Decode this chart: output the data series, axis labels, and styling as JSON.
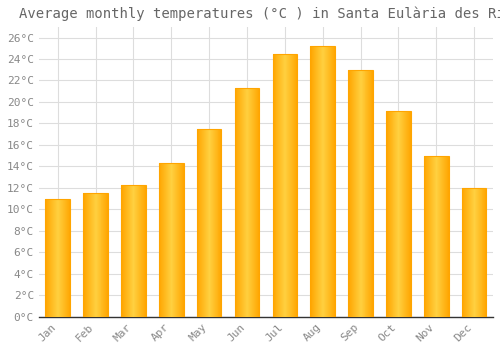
{
  "title": "Average monthly temperatures (°C ) in Santa Eulària des Riu",
  "months": [
    "Jan",
    "Feb",
    "Mar",
    "Apr",
    "May",
    "Jun",
    "Jul",
    "Aug",
    "Sep",
    "Oct",
    "Nov",
    "Dec"
  ],
  "values": [
    11.0,
    11.5,
    12.3,
    14.3,
    17.5,
    21.3,
    24.5,
    25.2,
    23.0,
    19.2,
    15.0,
    12.0
  ],
  "bar_color_center": "#FFD040",
  "bar_color_edge": "#FFA500",
  "background_color": "#FFFFFF",
  "plot_bg_color": "#FFFFFF",
  "grid_color": "#DDDDDD",
  "text_color": "#888888",
  "title_color": "#666666",
  "ylim": [
    0,
    27
  ],
  "ytick_step": 2,
  "title_fontsize": 10,
  "tick_fontsize": 8,
  "font_family": "monospace"
}
